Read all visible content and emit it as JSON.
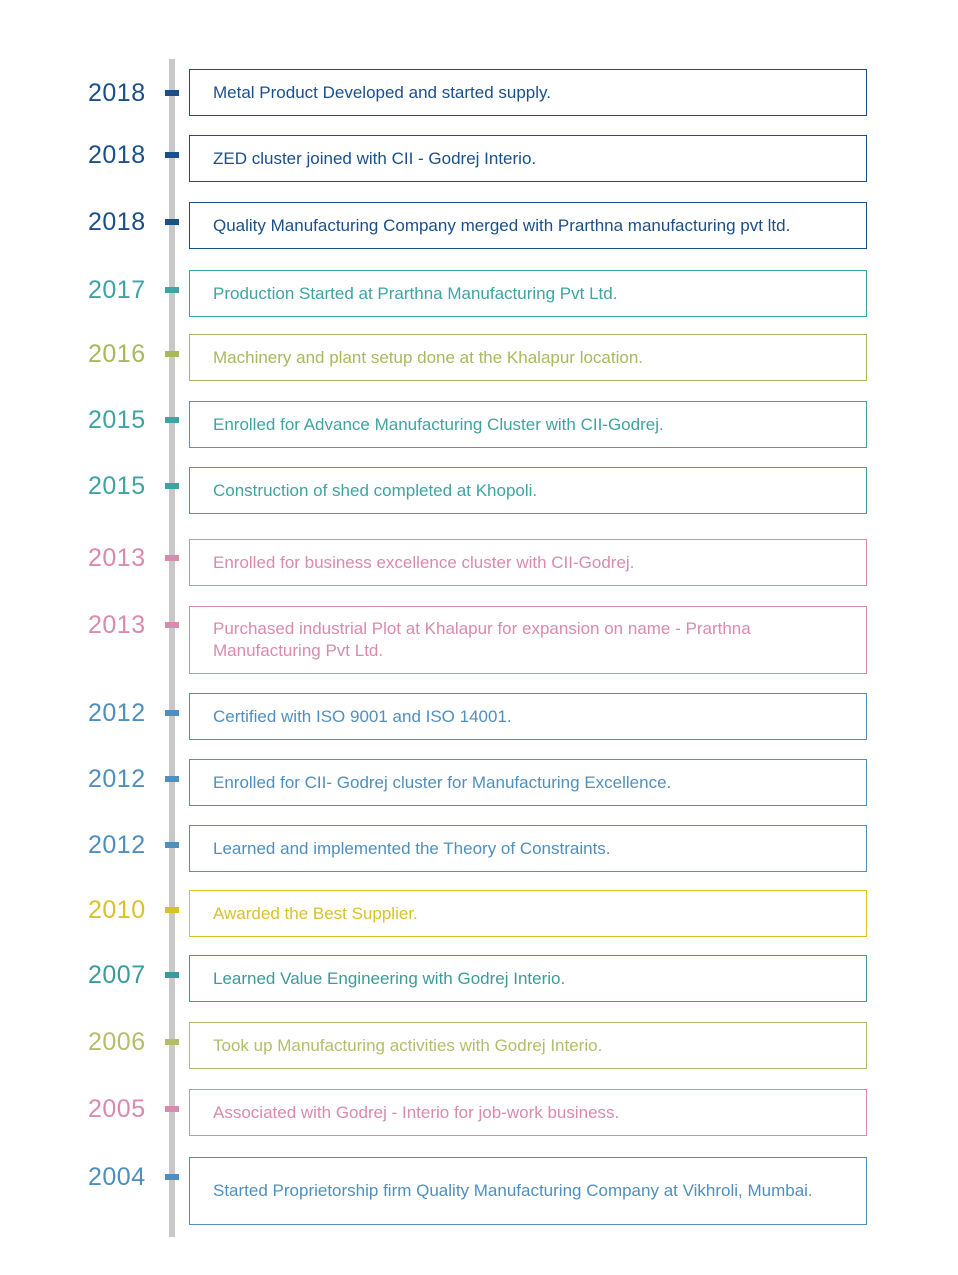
{
  "colors": {
    "timeline_line": "#c8c8c8",
    "dark_blue": "#1a4f8a",
    "teal": "#3fa3a3",
    "olive": "#a9b85b",
    "pink": "#d98aae",
    "steel_blue": "#4f8fbf",
    "yellow": "#d9c12a",
    "dark_teal": "#3c9a9a",
    "light_olive": "#b5bd6a"
  },
  "entries": [
    {
      "year": "2018",
      "text": "Metal Product Developed and started supply.",
      "color": "#1a4f8a"
    },
    {
      "year": "2018",
      "text": "ZED cluster joined with CII - Godrej Interio.",
      "color": "#1a4f8a"
    },
    {
      "year": "2018",
      "text": "Quality Manufacturing Company merged with Prarthna manufacturing pvt ltd.",
      "color": "#1a4f8a"
    },
    {
      "year": "2017",
      "text": "Production Started at Prarthna Manufacturing Pvt Ltd.",
      "color": "#3fa3a3"
    },
    {
      "year": "2016",
      "text": "Machinery and plant setup done at the Khalapur location.",
      "color": "#a9b85b"
    },
    {
      "year": "2015",
      "text": "Enrolled for Advance Manufacturing Cluster with CII-Godrej.",
      "color": "#3fa3a3"
    },
    {
      "year": "2015",
      "text": "Construction of shed completed at Khopoli.",
      "color": "#3fa3a3"
    },
    {
      "year": "2013",
      "text": "Enrolled for business excellence cluster with CII-Godrej.",
      "color": "#d98aae"
    },
    {
      "year": "2013",
      "text": "Purchased industrial Plot at Khalapur for expansion on name - Prarthna Manufacturing Pvt Ltd.",
      "color": "#d98aae"
    },
    {
      "year": "2012",
      "text": "Certified with ISO 9001 and ISO 14001.",
      "color": "#4f8fbf"
    },
    {
      "year": "2012",
      "text": "Enrolled for CII- Godrej cluster for Manufacturing Excellence.",
      "color": "#4f8fbf"
    },
    {
      "year": "2012",
      "text": "Learned and implemented the Theory of Constraints.",
      "color": "#4f8fbf"
    },
    {
      "year": "2010",
      "text": "Awarded the Best Supplier.",
      "color": "#d9c12a"
    },
    {
      "year": "2007",
      "text": "Learned Value Engineering with Godrej Interio.",
      "color": "#3c9a9a"
    },
    {
      "year": "2006",
      "text": "Took up Manufacturing activities with Godrej Interio.",
      "color": "#b5bd6a"
    },
    {
      "year": "2005",
      "text": "Associated with Godrej - Interio for job-work business.",
      "color": "#d98aae"
    },
    {
      "year": "2004",
      "text": "Started Proprietorship firm  Quality Manufacturing Company  at Vikhroli, Mumbai.",
      "color": "#4f8fbf"
    }
  ]
}
